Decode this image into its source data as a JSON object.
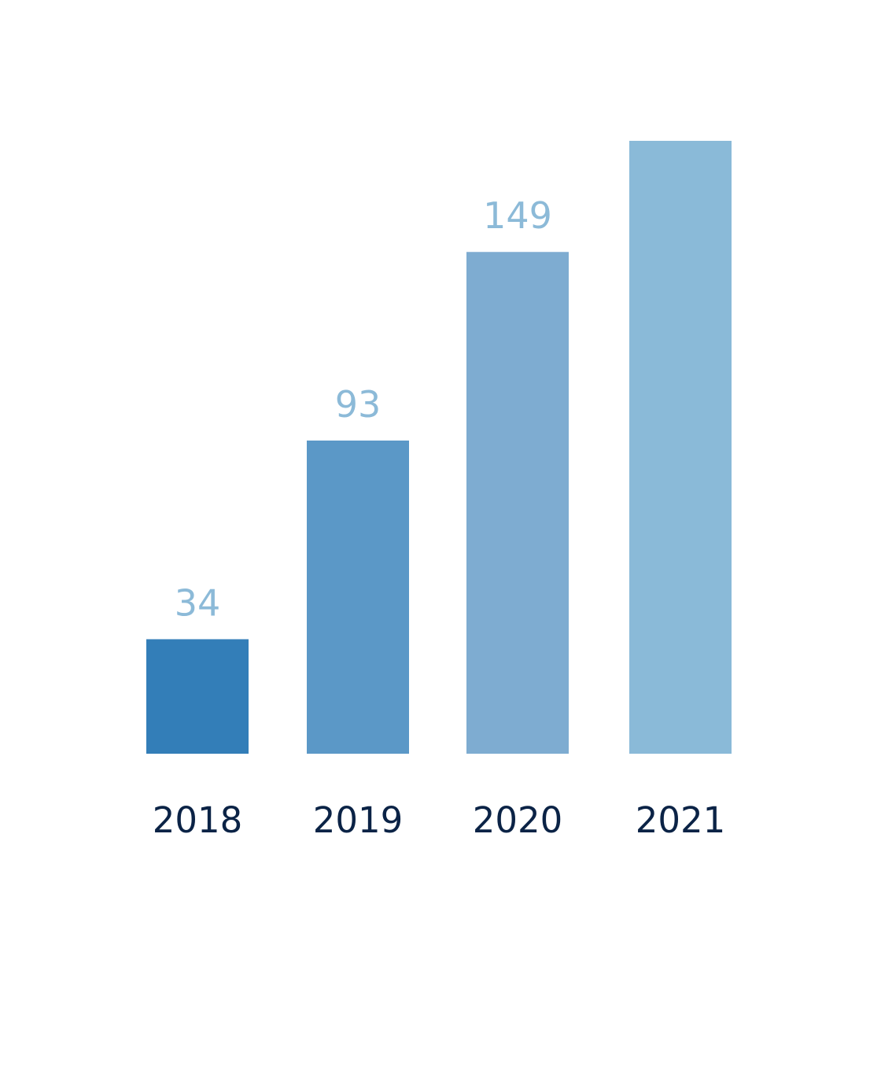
{
  "chart_data": {
    "type": "bar",
    "title": "",
    "xlabel": "",
    "ylabel": "",
    "categories": [
      "2018",
      "2019",
      "2020",
      "2021"
    ],
    "values": [
      34,
      93,
      149,
      182
    ],
    "value_labels": [
      "34",
      "93",
      "149",
      ""
    ],
    "ylim": [
      0,
      182
    ],
    "grid": false,
    "legend": "none",
    "bar_colors": [
      "#337eb8",
      "#5b98c7",
      "#7eacd1",
      "#8abad8"
    ],
    "value_label_color": "#8cbad8",
    "tick_label_color": "#0b2346"
  }
}
